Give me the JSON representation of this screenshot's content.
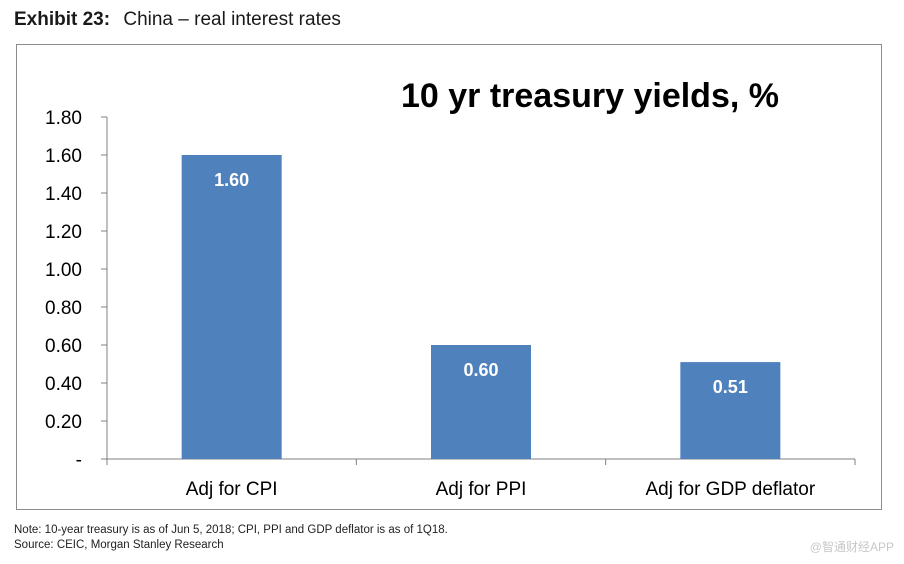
{
  "exhibit": {
    "label": "Exhibit 23:",
    "title": "China – real interest rates"
  },
  "chart_data": {
    "type": "bar",
    "title": "10 yr treasury yields, %",
    "categories": [
      "Adj for CPI",
      "Adj for PPI",
      "Adj for GDP deflator"
    ],
    "values": [
      1.6,
      0.6,
      0.51
    ],
    "data_labels": [
      "1.60",
      "0.60",
      "0.51"
    ],
    "y_ticks": [
      "-",
      "0.20",
      "0.40",
      "0.60",
      "0.80",
      "1.00",
      "1.20",
      "1.40",
      "1.60",
      "1.80"
    ],
    "ylim": [
      0,
      1.8
    ],
    "bar_color": "#4f81bd",
    "grid": false,
    "legend": "none"
  },
  "notes": {
    "note": "Note: 10-year treasury is as of Jun 5, 2018; CPI, PPI and GDP deflator is as of 1Q18.",
    "source": "Source: CEIC, Morgan Stanley Research"
  },
  "watermark": "@智通财经APP"
}
